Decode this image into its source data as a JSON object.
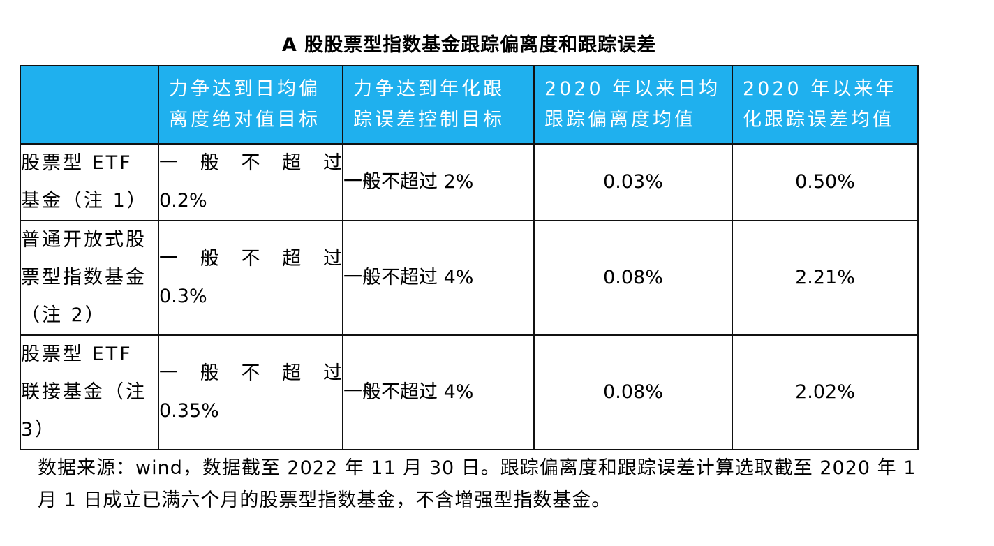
{
  "title": "A 股股票型指数基金跟踪偏离度和跟踪误差",
  "table": {
    "headers": [
      "",
      "力争达到日均偏离度绝对值目标",
      "力争达到年化跟踪误差控制目标",
      "2020 年以来日均跟踪偏离度均值",
      "2020 年以来年化跟踪误差均值"
    ],
    "rows": [
      {
        "label": "股票型 ETF 基金（注 1）",
        "deviation_target_chars": [
          "一",
          "般",
          "不",
          "超",
          "过"
        ],
        "deviation_target_value": "0.2%",
        "tracking_target": "一般不超过 2%",
        "avg_deviation": "0.03%",
        "avg_tracking_error": "0.50%"
      },
      {
        "label": "普通开放式股票型指数基金（注 2）",
        "deviation_target_chars": [
          "一",
          "般",
          "不",
          "超",
          "过"
        ],
        "deviation_target_value": "0.3%",
        "tracking_target": "一般不超过 4%",
        "avg_deviation": "0.08%",
        "avg_tracking_error": "2.21%"
      },
      {
        "label": "股票型 ETF 联接基金（注 3）",
        "deviation_target_chars": [
          "一",
          "般",
          "不",
          "超",
          "过"
        ],
        "deviation_target_value": "0.35%",
        "tracking_target": "一般不超过 4%",
        "avg_deviation": "0.08%",
        "avg_tracking_error": "2.02%"
      }
    ]
  },
  "note": "数据来源：wind，数据截至 2022 年 11 月 30 日。跟踪偏离度和跟踪误差计算选取截至 2020 年 1 月 1 日成立已满六个月的股票型指数基金，不含增强型指数基金。",
  "colors": {
    "header_bg": "#1fb0ee",
    "header_text": "#ffffff",
    "border": "#111111"
  }
}
